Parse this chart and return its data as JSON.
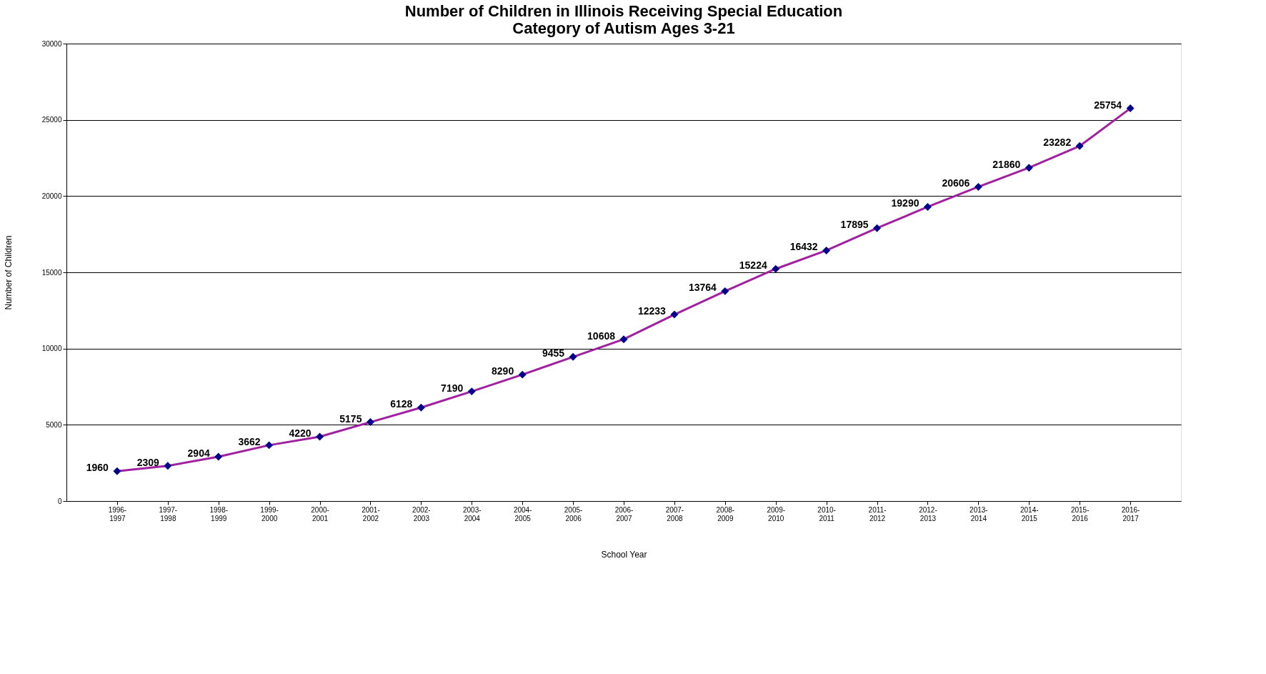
{
  "chart_data": {
    "type": "line",
    "title": [
      "Number of Children in Illinois Receiving Special Education",
      "Category of Autism Ages 3-21"
    ],
    "xlabel": "School Year",
    "ylabel": "Number of Children",
    "categories": [
      "1996-1997",
      "1997-1998",
      "1998-1999",
      "1999-2000",
      "2000-2001",
      "2001-2002",
      "2002-2003",
      "2003-2004",
      "2004-2005",
      "2005-2006",
      "2006-2007",
      "2007-2008",
      "2008-2009",
      "2009-2010",
      "2010-2011",
      "2011-2012",
      "2012-2013",
      "2013-2014",
      "2014-2015",
      "2015-2016",
      "2016-2017"
    ],
    "series": [
      {
        "color": "#a020a0",
        "values": [
          1960,
          2309,
          2904,
          3662,
          4220,
          5175,
          6128,
          7190,
          8290,
          9455,
          10608,
          12233,
          13764,
          15224,
          16432,
          17895,
          19290,
          20606,
          21860,
          23282,
          25754
        ]
      }
    ],
    "marker": "diamond",
    "data_labels": true,
    "ylim": [
      0,
      30000
    ],
    "yticks": [
      0,
      5000,
      10000,
      15000,
      20000,
      25000,
      30000
    ],
    "grid": "y",
    "line_style": "solid"
  }
}
